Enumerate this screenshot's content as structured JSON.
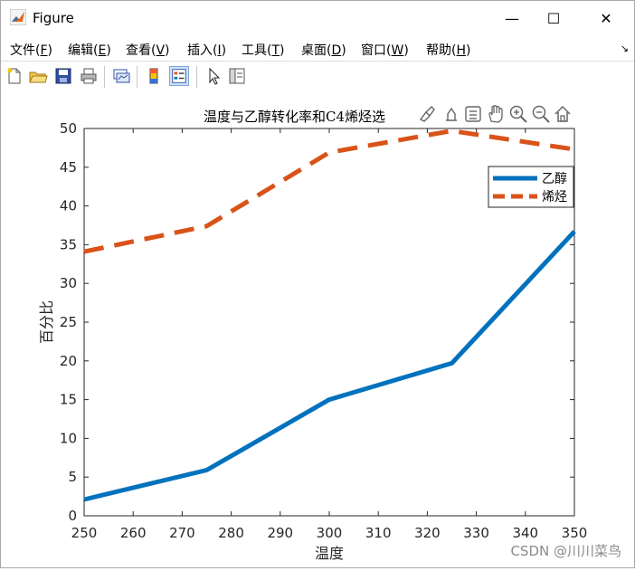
{
  "window": {
    "title": "Figure",
    "minimize": "—",
    "maximize": "☐",
    "close": "✕"
  },
  "menu": [
    {
      "text": "文件(",
      "key": "F",
      "end": ")"
    },
    {
      "text": "编辑(",
      "key": "E",
      "end": ")"
    },
    {
      "text": "查看(",
      "key": "V",
      "end": ")"
    },
    {
      "text": "插入(",
      "key": "I",
      "end": ")"
    },
    {
      "text": "工具(",
      "key": "T",
      "end": ")"
    },
    {
      "text": "桌面(",
      "key": "D",
      "end": ")"
    },
    {
      "text": "窗口(",
      "key": "W",
      "end": ")"
    },
    {
      "text": "帮助(",
      "key": "H",
      "end": ")"
    }
  ],
  "toolbar": [
    "new-file-icon",
    "open-folder-icon",
    "save-icon",
    "print-icon",
    "link-plot-icon",
    "colorbar-icon",
    "legend-icon",
    "pointer-icon",
    "property-inspector-icon"
  ],
  "axes_toolbar": [
    "brush-icon",
    "data-tips-icon",
    "restore-view-icon",
    "pan-icon",
    "zoom-in-icon",
    "zoom-out-icon",
    "home-icon"
  ],
  "watermark": "CSDN @川川菜鸟",
  "colors": {
    "ethanol": "#0072BD",
    "olefin": "#D95319",
    "axis": "#262626"
  },
  "chart_data": {
    "type": "line",
    "title": "温度与乙醇转化率和C4烯烃选",
    "xlabel": "温度",
    "ylabel": "百分比",
    "xlim": [
      250,
      350
    ],
    "ylim": [
      0,
      50
    ],
    "xticks": [
      250,
      260,
      270,
      280,
      290,
      300,
      310,
      320,
      330,
      340,
      350
    ],
    "yticks": [
      0,
      5,
      10,
      15,
      20,
      25,
      30,
      35,
      40,
      45,
      50
    ],
    "grid": false,
    "legend_position": "top-right",
    "series": [
      {
        "name": "乙醇",
        "style": "solid",
        "color": "#0072BD",
        "x": [
          250,
          275,
          300,
          325,
          350
        ],
        "y": [
          2.1,
          5.9,
          15.0,
          19.7,
          36.7
        ]
      },
      {
        "name": "烯烃",
        "style": "dashed",
        "color": "#D95319",
        "x": [
          250,
          275,
          300,
          325,
          350
        ],
        "y": [
          34.1,
          37.4,
          46.9,
          49.7,
          47.3
        ]
      }
    ]
  }
}
